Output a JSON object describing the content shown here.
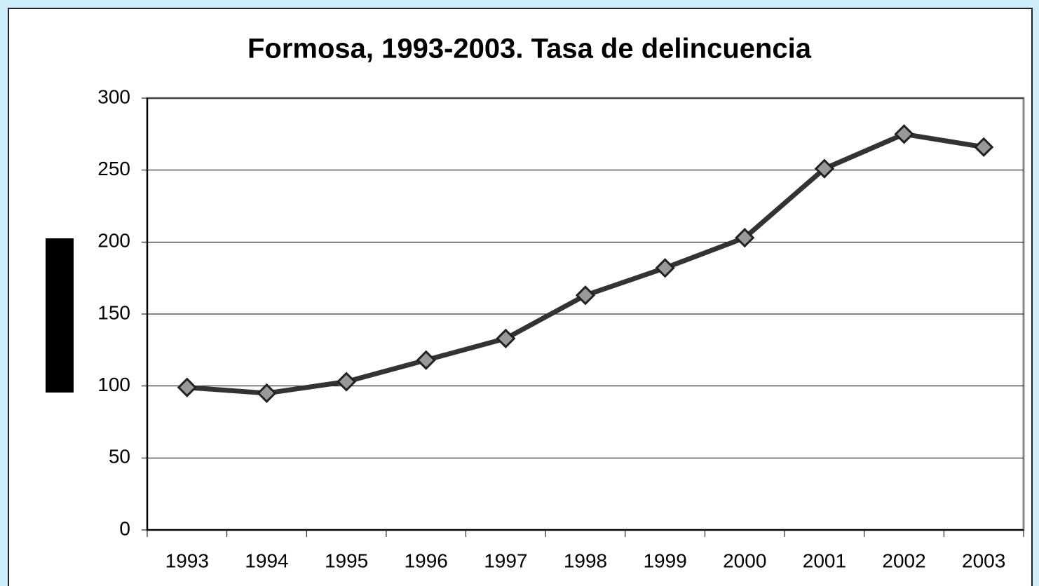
{
  "chart_data": {
    "type": "line",
    "title": "Formosa, 1993-2003. Tasa de delincuencia",
    "categories": [
      "1993",
      "1994",
      "1995",
      "1996",
      "1997",
      "1998",
      "1999",
      "2000",
      "2001",
      "2002",
      "2003"
    ],
    "series": [
      {
        "color": "#333333",
        "values": [
          99,
          95,
          103,
          118,
          133,
          163,
          182,
          203,
          251,
          275,
          266
        ]
      }
    ],
    "ylim": [
      0,
      300
    ],
    "yticks": [
      0,
      50,
      100,
      150,
      200,
      250,
      300
    ],
    "grid": true
  }
}
